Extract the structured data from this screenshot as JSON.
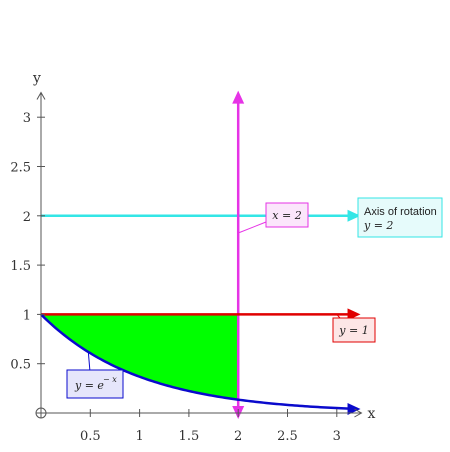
{
  "chart_data": {
    "type": "line",
    "title": "",
    "xlabel": "x",
    "ylabel": "y",
    "xlim": [
      0,
      3.2
    ],
    "ylim": [
      0,
      3.2
    ],
    "x_ticks": [
      0.5,
      1,
      1.5,
      2,
      2.5,
      3
    ],
    "y_ticks": [
      0.5,
      1,
      1.5,
      2,
      2.5,
      3
    ],
    "x_tick_labels": [
      "0.5",
      "1",
      "1.5",
      "2",
      "2.5",
      "3"
    ],
    "y_tick_labels": [
      "0.5",
      "1",
      "1.5",
      "2",
      "2.5",
      "3"
    ],
    "series": [
      {
        "label": "y = e^(-x)",
        "function": "exp(-x)",
        "x_range": [
          0,
          3.2
        ],
        "color": "#0a0acc"
      },
      {
        "label": "y = 1",
        "y": 1,
        "x_range": [
          0,
          3.2
        ],
        "color": "#e00000"
      },
      {
        "label": "y = 2",
        "y": 2,
        "x_range": [
          0,
          3.2
        ],
        "color": "#33e6e6"
      },
      {
        "label": "x = 2",
        "x": 2,
        "y_range": [
          0,
          3.2
        ],
        "color": "#e633e6"
      }
    ],
    "shaded_region": {
      "description": "between y = 1 and y = e^(-x) for 0 <= x <= 2",
      "x_range": [
        0,
        2
      ],
      "upper": 1,
      "lower": "exp(-x)",
      "color": "#00ff00"
    },
    "annotations": [
      {
        "text_main": "Axis of rotation",
        "text_sub": "y = 2",
        "color": "#33e6e6"
      },
      {
        "text_main": "x = 2",
        "color": "#e633e6"
      },
      {
        "text_main": "y = 1",
        "color": "#e00000"
      },
      {
        "text_main": "y = e",
        "superscript": "− x",
        "color": "#0a0acc"
      }
    ]
  }
}
